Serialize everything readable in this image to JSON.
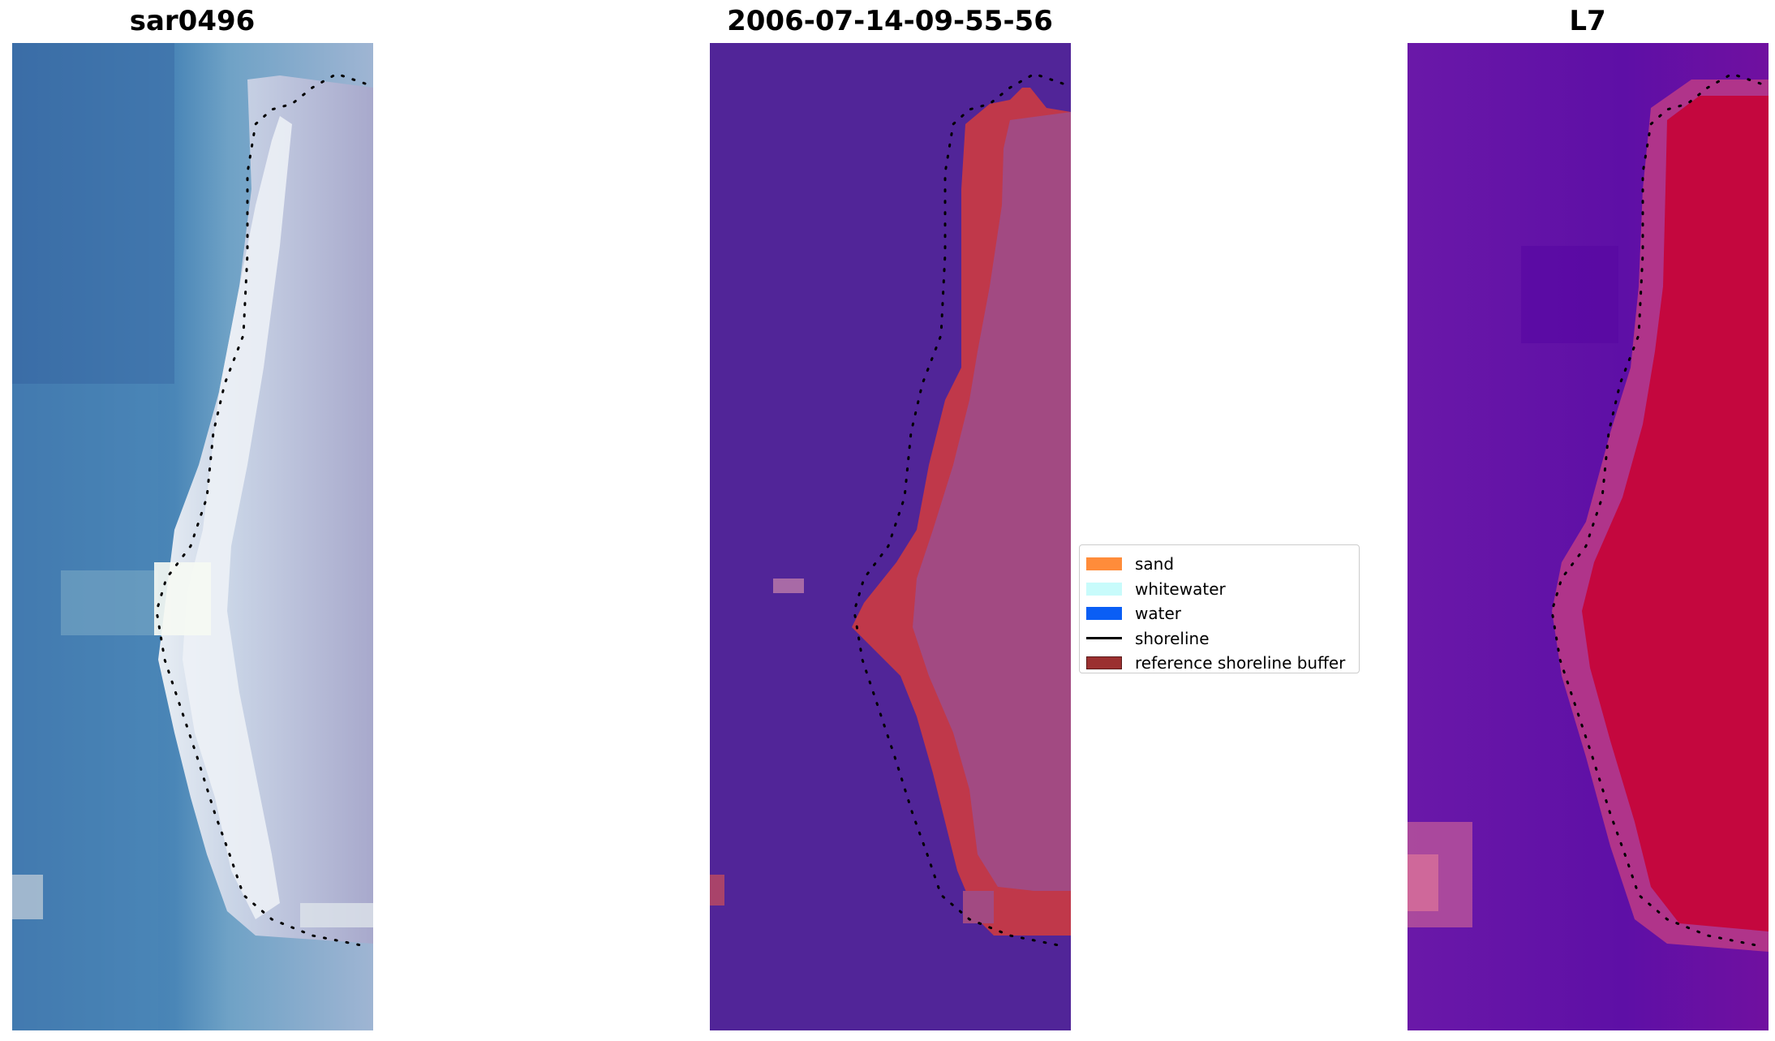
{
  "panels": [
    {
      "title": "sar0496",
      "image": "rgb-satellite-image"
    },
    {
      "title": "2006-07-14-09-55-56",
      "image": "classified-image"
    },
    {
      "title": "L7",
      "image": "water-index-image"
    }
  ],
  "legend": {
    "items": [
      {
        "label": "sand",
        "color": "#ff8c3a",
        "kind": "patch"
      },
      {
        "label": "whitewater",
        "color": "#c8fbfb",
        "kind": "patch"
      },
      {
        "label": "water",
        "color": "#0a5ef5",
        "kind": "patch"
      },
      {
        "label": "shoreline",
        "color": "#000000",
        "kind": "line"
      },
      {
        "label": "reference shoreline buffer",
        "color": "#9b3030",
        "kind": "patch"
      }
    ]
  }
}
